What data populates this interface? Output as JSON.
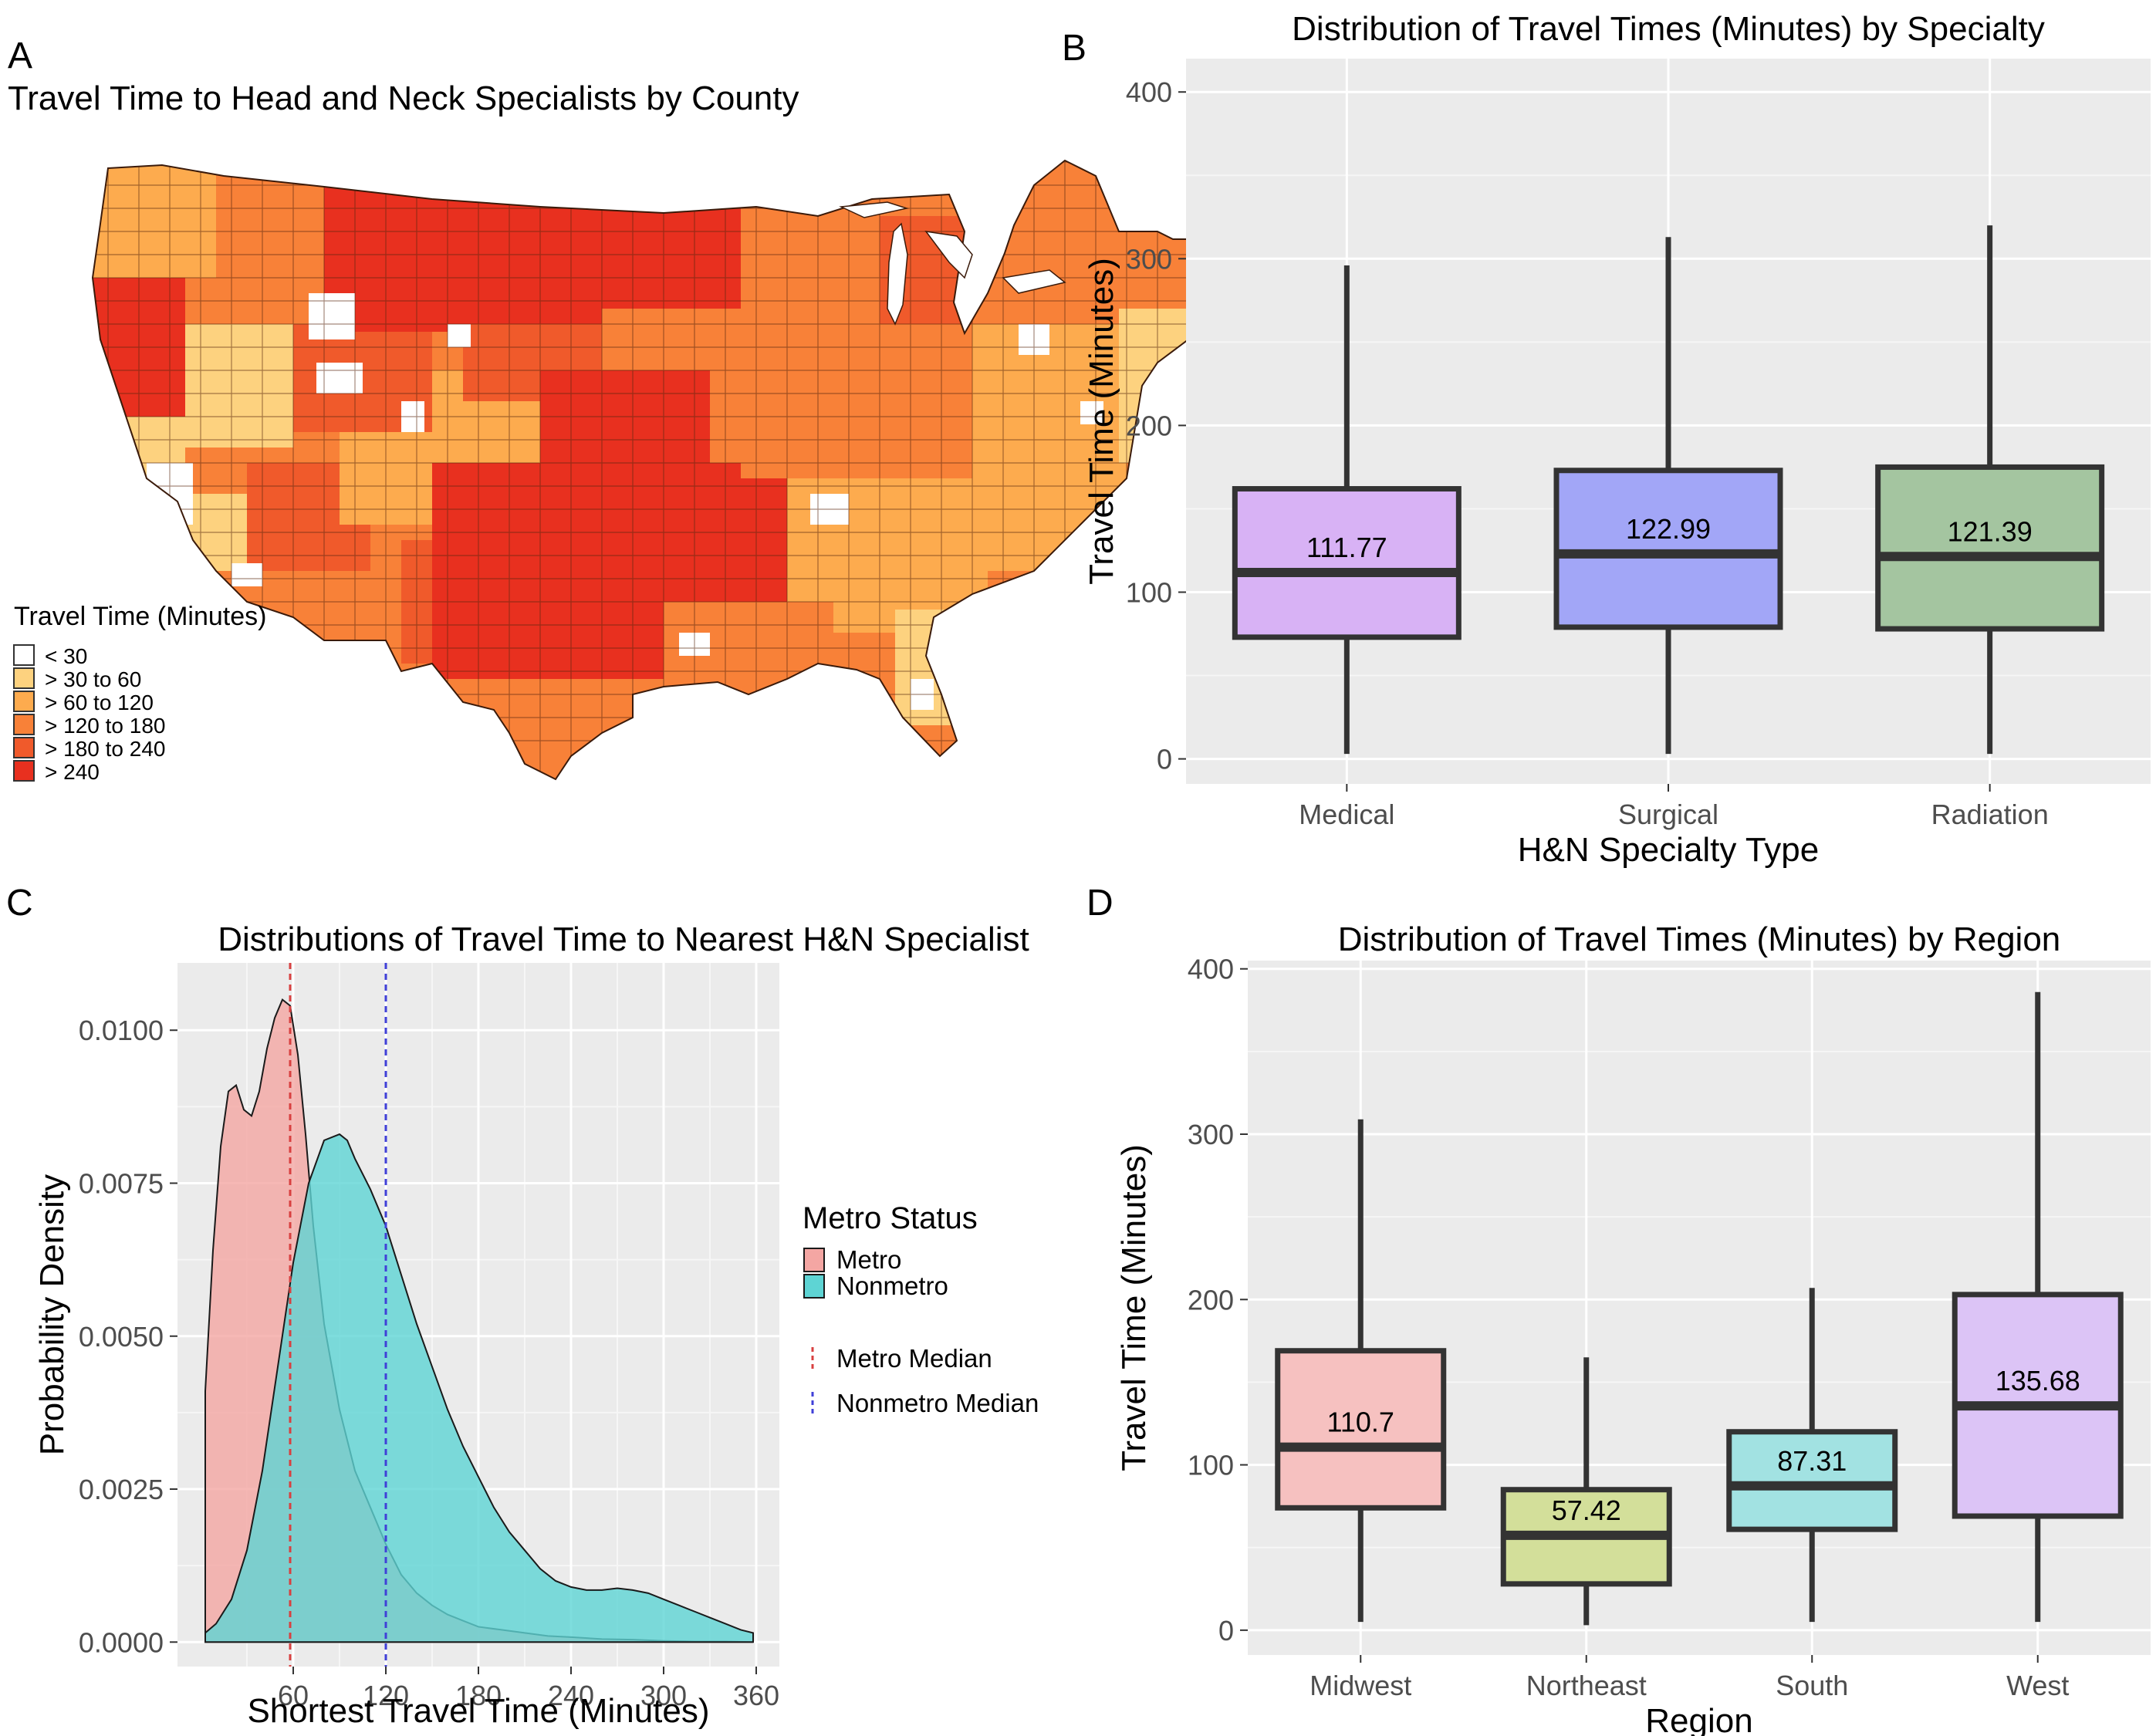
{
  "panels": {
    "A": {
      "letter": "A",
      "title": "Travel Time to Head and Neck Specialists by County",
      "legend_title": "Travel Time (Minutes)",
      "legend": [
        {
          "label": "< 30",
          "color": "#ffffff"
        },
        {
          "label": "> 30 to 60",
          "color": "#fdd27f"
        },
        {
          "label": "> 60 to 120",
          "color": "#fdab4e"
        },
        {
          "label": "> 120 to 180",
          "color": "#f88138"
        },
        {
          "label": "> 180 to 240",
          "color": "#f05a2b"
        },
        {
          "label": "> 240",
          "color": "#e8301f"
        }
      ]
    },
    "B": {
      "letter": "B"
    },
    "C": {
      "letter": "C"
    },
    "D": {
      "letter": "D"
    }
  },
  "chart_data": [
    {
      "id": "B",
      "type": "box",
      "title": "Distribution of Travel Times (Minutes) by Specialty",
      "xlabel": "H&N Specialty Type",
      "ylabel": "Travel Time (Minutes)",
      "ylim": [
        -15,
        420
      ],
      "yticks": [
        0,
        100,
        200,
        300,
        400
      ],
      "boxes": [
        {
          "category": "Medical",
          "whisker_low": 3,
          "q1": 73,
          "median": 111.77,
          "q3": 162,
          "whisker_high": 296,
          "label": "111.77",
          "color": "#d8b2f5"
        },
        {
          "category": "Surgical",
          "whisker_low": 3,
          "q1": 79,
          "median": 122.99,
          "q3": 173,
          "whisker_high": 313,
          "label": "122.99",
          "color": "#a2a6f7"
        },
        {
          "category": "Radiation",
          "whisker_low": 3,
          "q1": 78,
          "median": 121.39,
          "q3": 175,
          "whisker_high": 320,
          "label": "121.39",
          "color": "#a4c5a0"
        }
      ]
    },
    {
      "id": "C",
      "type": "density",
      "title": "Distributions of Travel Time to Nearest H&N Specialist",
      "xlabel": "Shortest Travel Time (Minutes)",
      "ylabel": "Probability Density",
      "xlim": [
        -15,
        375
      ],
      "ylim": [
        -0.0004,
        0.0111
      ],
      "xticks": [
        60,
        120,
        180,
        240,
        300,
        360
      ],
      "yticks": [
        0.0,
        0.0025,
        0.005,
        0.0075,
        0.01
      ],
      "ytick_labels": [
        "0.0000",
        "0.0025",
        "0.0050",
        "0.0075",
        "0.0100"
      ],
      "legend_title": "Metro Status",
      "series": [
        {
          "name": "Metro",
          "color": "#f4a6a3",
          "x": [
            3,
            8,
            13,
            18,
            23,
            28,
            33,
            38,
            43,
            48,
            53,
            58,
            63,
            68,
            73,
            80,
            90,
            100,
            110,
            120,
            130,
            140,
            150,
            160,
            170,
            180,
            195,
            210,
            225,
            240,
            260,
            280,
            300,
            320,
            340,
            358
          ],
          "y": [
            0.0041,
            0.0064,
            0.0081,
            0.009,
            0.0091,
            0.0087,
            0.0086,
            0.009,
            0.0097,
            0.0102,
            0.0105,
            0.0104,
            0.0096,
            0.0083,
            0.0068,
            0.0052,
            0.0038,
            0.0028,
            0.0022,
            0.0016,
            0.0011,
            0.0008,
            0.0006,
            0.00045,
            0.00035,
            0.00025,
            0.0002,
            0.00015,
            0.0001,
            8e-05,
            5e-05,
            4e-05,
            2e-05,
            1e-05,
            1e-05,
            0.0
          ]
        },
        {
          "name": "Nonmetro",
          "color": "#5ed4d4",
          "x": [
            3,
            10,
            20,
            30,
            40,
            50,
            60,
            70,
            80,
            90,
            95,
            100,
            110,
            120,
            130,
            140,
            150,
            160,
            170,
            180,
            190,
            200,
            210,
            220,
            230,
            240,
            250,
            260,
            270,
            280,
            290,
            300,
            310,
            320,
            330,
            340,
            350,
            358
          ],
          "y": [
            0.00015,
            0.0003,
            0.0007,
            0.0015,
            0.0028,
            0.0045,
            0.0062,
            0.0075,
            0.0082,
            0.0083,
            0.0082,
            0.0079,
            0.0074,
            0.0068,
            0.006,
            0.0052,
            0.0045,
            0.0038,
            0.0032,
            0.0027,
            0.0022,
            0.0018,
            0.0015,
            0.0012,
            0.001,
            0.0009,
            0.00085,
            0.00085,
            0.00088,
            0.00085,
            0.0008,
            0.0007,
            0.0006,
            0.0005,
            0.0004,
            0.0003,
            0.0002,
            0.00015
          ]
        }
      ],
      "medians": [
        {
          "name": "Metro Median",
          "value": 58,
          "color": "#d84040"
        },
        {
          "name": "Nonmetro Median",
          "value": 120,
          "color": "#4040d8"
        }
      ]
    },
    {
      "id": "D",
      "type": "box",
      "title": "Distribution of Travel Times (Minutes) by Region",
      "xlabel": "Region",
      "ylabel": "Travel Time (Minutes)",
      "ylim": [
        -15,
        405
      ],
      "yticks": [
        0,
        100,
        200,
        300,
        400
      ],
      "boxes": [
        {
          "category": "Midwest",
          "whisker_low": 5,
          "q1": 74,
          "median": 110.7,
          "q3": 169,
          "whisker_high": 309,
          "label": "110.7",
          "color": "#f6c1c0"
        },
        {
          "category": "Northeast",
          "whisker_low": 3,
          "q1": 28,
          "median": 57.42,
          "q3": 85,
          "whisker_high": 165,
          "label": "57.42",
          "color": "#d3df9a"
        },
        {
          "category": "South",
          "whisker_low": 5,
          "q1": 61,
          "median": 87.31,
          "q3": 120,
          "whisker_high": 207,
          "label": "87.31",
          "color": "#a2e2e2"
        },
        {
          "category": "West",
          "whisker_low": 5,
          "q1": 69,
          "median": 135.68,
          "q3": 203,
          "whisker_high": 386,
          "label": "135.68",
          "color": "#dcc4f6"
        }
      ]
    }
  ]
}
